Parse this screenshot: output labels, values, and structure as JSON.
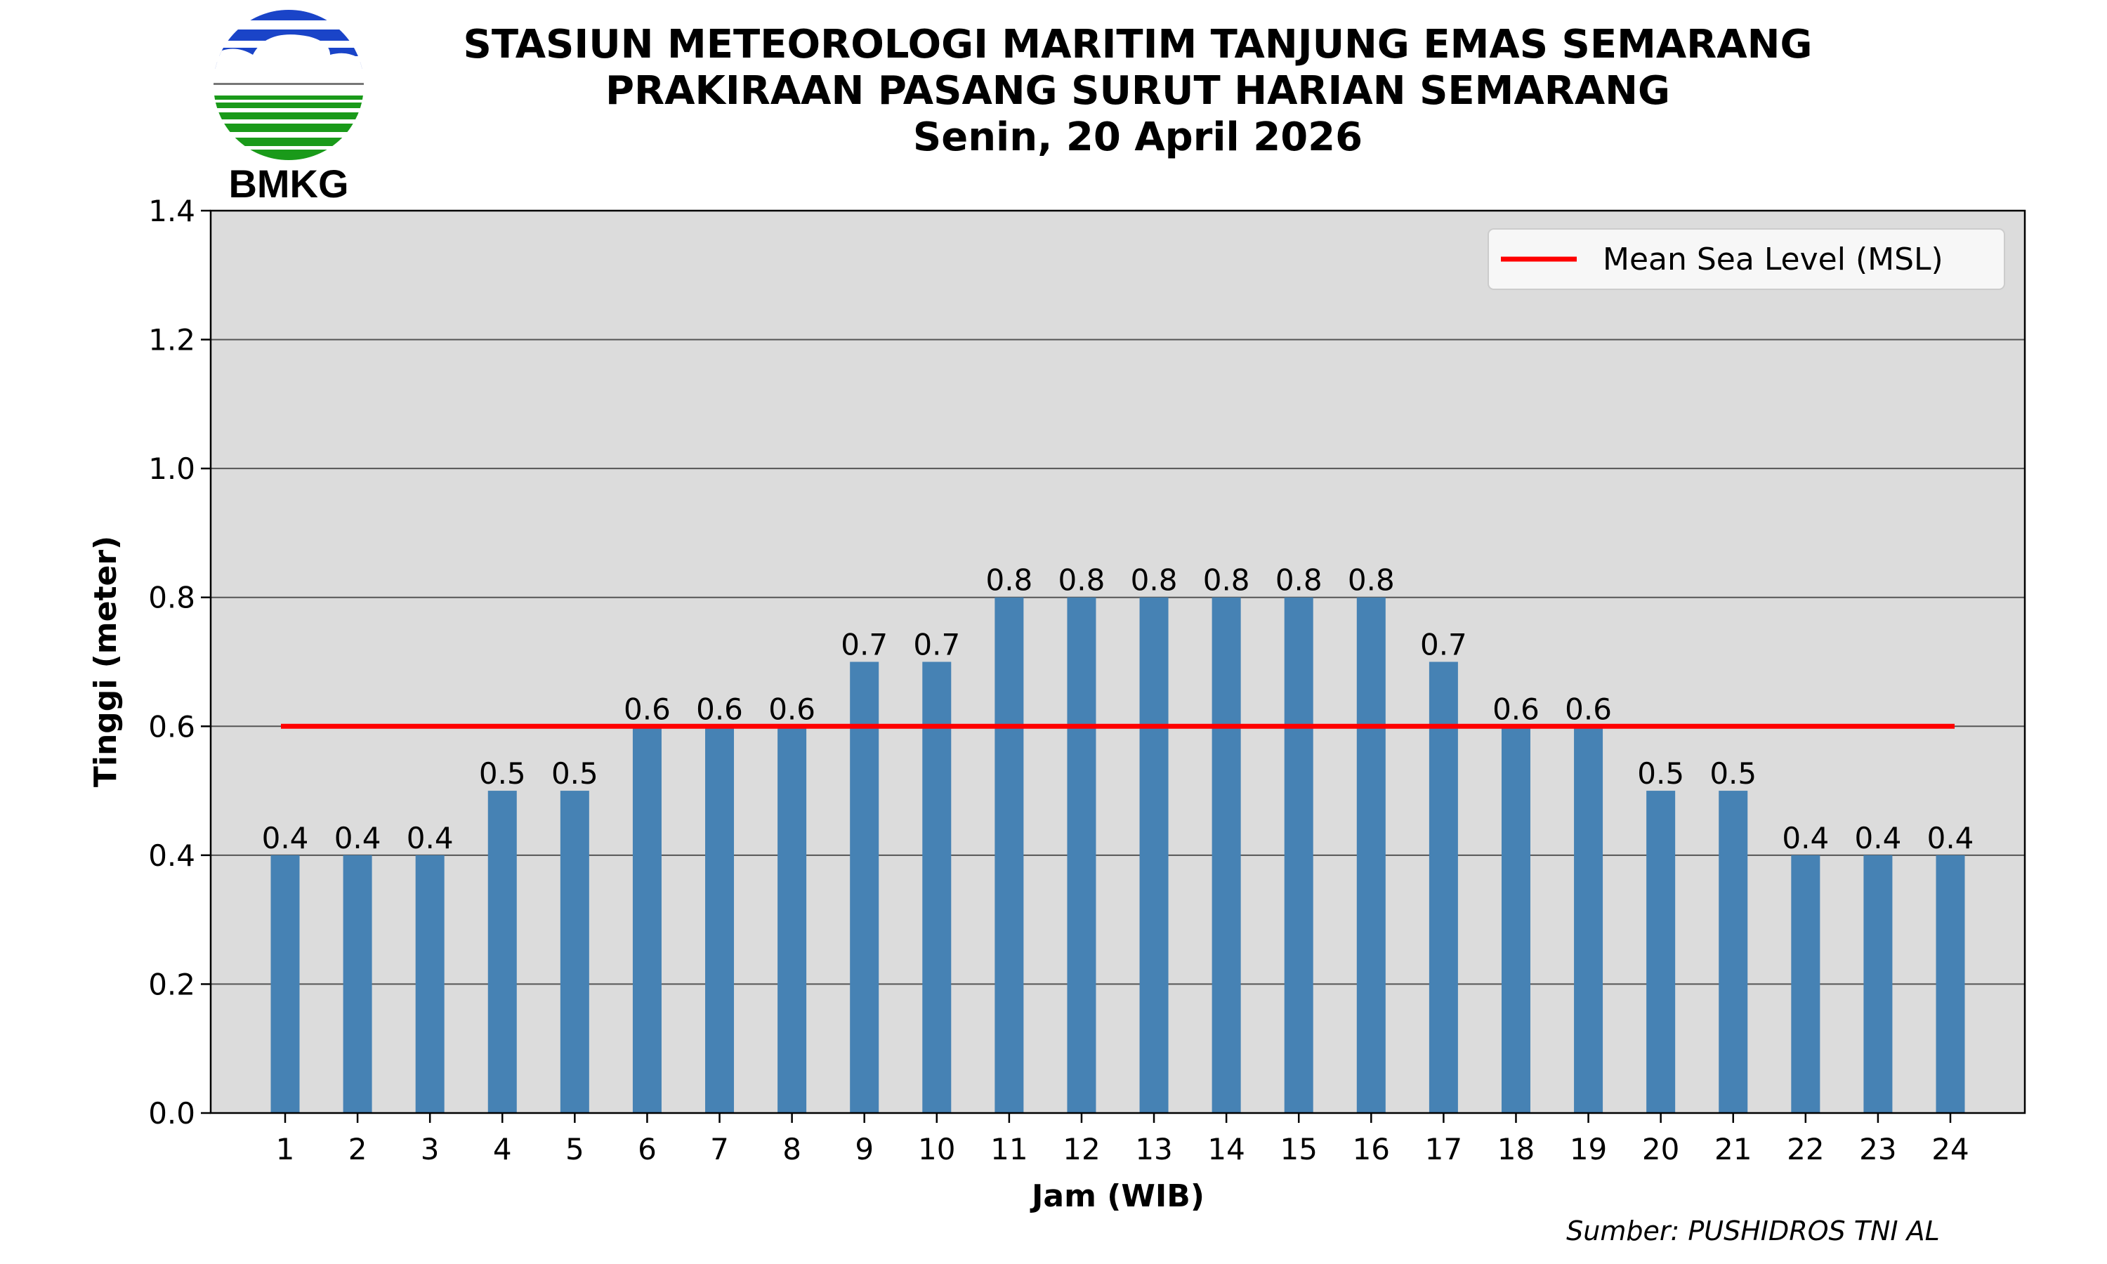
{
  "header": {
    "logo_text": "BMKG",
    "title_line1": "STASIUN METEOROLOGI MARITIM TANJUNG EMAS SEMARANG",
    "title_line2": "PRAKIRAAN PASANG SURUT HARIAN SEMARANG",
    "title_line3": "Senin, 20 April 2026"
  },
  "footer": {
    "source": "Sumber: PUSHIDROS TNI AL"
  },
  "colors": {
    "bar": "#4682b4",
    "msl": "#ff0000",
    "plot_bg": "#dcdcdc",
    "grid": "#555555"
  },
  "chart_data": {
    "type": "bar",
    "title": "PRAKIRAAN PASANG SURUT HARIAN SEMARANG",
    "xlabel": "Jam (WIB)",
    "ylabel": "Tinggi (meter)",
    "categories": [
      "1",
      "2",
      "3",
      "4",
      "5",
      "6",
      "7",
      "8",
      "9",
      "10",
      "11",
      "12",
      "13",
      "14",
      "15",
      "16",
      "17",
      "18",
      "19",
      "20",
      "21",
      "22",
      "23",
      "24"
    ],
    "values": [
      0.4,
      0.4,
      0.4,
      0.5,
      0.5,
      0.6,
      0.6,
      0.6,
      0.7,
      0.7,
      0.8,
      0.8,
      0.8,
      0.8,
      0.8,
      0.8,
      0.7,
      0.6,
      0.6,
      0.5,
      0.5,
      0.4,
      0.4,
      0.4
    ],
    "ylim": [
      0,
      1.4
    ],
    "yticks": [
      "0.0",
      "0.2",
      "0.4",
      "0.6",
      "0.8",
      "1.0",
      "1.2",
      "1.4"
    ],
    "grid": true,
    "msl": {
      "value": 0.6,
      "label": "Mean Sea Level (MSL)"
    },
    "legend_position": "top-right"
  }
}
